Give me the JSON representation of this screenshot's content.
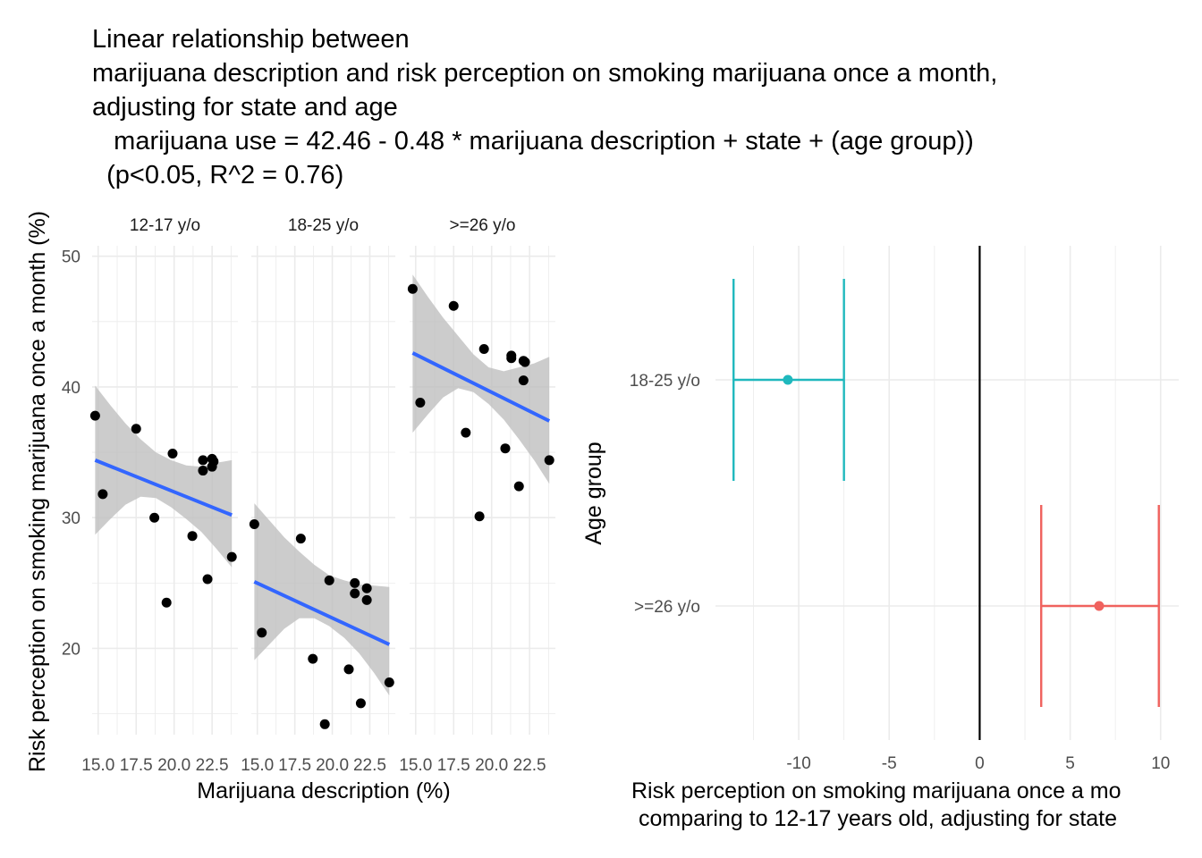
{
  "title_lines": [
    "Linear relationship between",
    "marijuana description and risk perception on smoking marijuana once a month,",
    "adjusting for state and age",
    "   marijuana use = 42.46 - 0.48 * marijuana description + state + (age group))",
    "  (p<0.05, R^2 = 0.76)"
  ],
  "colors": {
    "grid": "#ebebeb",
    "points": "#000000",
    "fit_line": "#3366ff",
    "ribbon": "#bfbfbf",
    "group_18_25": "#1fb8bd",
    "group_26_plus": "#f0625e",
    "ref_line": "#000000"
  },
  "chart_data": [
    {
      "type": "scatter",
      "facets": [
        {
          "label": "12-17 y/o",
          "points": [
            [
              14.8,
              37.8
            ],
            [
              15.3,
              31.8
            ],
            [
              17.5,
              36.8
            ],
            [
              18.7,
              30.0
            ],
            [
              19.5,
              23.5
            ],
            [
              19.9,
              34.9
            ],
            [
              21.2,
              28.6
            ],
            [
              21.9,
              34.4
            ],
            [
              21.9,
              33.6
            ],
            [
              22.2,
              25.3
            ],
            [
              22.5,
              34.5
            ],
            [
              22.5,
              33.9
            ],
            [
              22.6,
              34.3
            ],
            [
              23.8,
              27.0
            ]
          ],
          "fit": {
            "x": [
              14.8,
              23.8
            ],
            "y": [
              34.4,
              30.2
            ]
          },
          "ribbon": {
            "x": [
              14.8,
              15.8,
              16.8,
              17.8,
              18.8,
              19.8,
              20.8,
              21.8,
              22.8,
              23.8
            ],
            "lower": [
              28.7,
              29.9,
              31.0,
              31.6,
              31.5,
              30.8,
              29.9,
              28.9,
              27.6,
              26.2
            ],
            "upper": [
              40.1,
              38.6,
              37.2,
              36.0,
              35.0,
              34.4,
              34.0,
              33.9,
              34.2,
              34.4
            ]
          }
        },
        {
          "label": "18-25 y/o",
          "points": [
            [
              14.8,
              29.5
            ],
            [
              15.3,
              21.2
            ],
            [
              17.9,
              28.4
            ],
            [
              18.7,
              19.2
            ],
            [
              19.5,
              14.2
            ],
            [
              19.8,
              25.2
            ],
            [
              21.1,
              18.4
            ],
            [
              21.5,
              24.2
            ],
            [
              21.5,
              25.0
            ],
            [
              21.9,
              15.8
            ],
            [
              22.3,
              24.6
            ],
            [
              22.3,
              23.7
            ],
            [
              23.8,
              17.4
            ]
          ],
          "fit": {
            "x": [
              14.8,
              23.8
            ],
            "y": [
              25.1,
              20.3
            ]
          },
          "ribbon": {
            "x": [
              14.8,
              15.8,
              16.8,
              17.8,
              18.8,
              19.8,
              20.8,
              21.8,
              22.8,
              23.8
            ],
            "lower": [
              19.1,
              20.3,
              21.5,
              22.3,
              22.3,
              21.7,
              20.8,
              19.6,
              18.1,
              16.4
            ],
            "upper": [
              31.1,
              29.8,
              28.5,
              27.4,
              26.4,
              25.6,
              25.2,
              24.9,
              24.8,
              24.7
            ]
          }
        },
        {
          "label": ">=26 y/o",
          "points": [
            [
              14.8,
              47.5
            ],
            [
              15.3,
              38.8
            ],
            [
              17.5,
              46.2
            ],
            [
              18.3,
              36.5
            ],
            [
              19.2,
              30.1
            ],
            [
              19.5,
              42.9
            ],
            [
              20.9,
              35.3
            ],
            [
              21.3,
              42.4
            ],
            [
              21.3,
              42.2
            ],
            [
              21.8,
              32.4
            ],
            [
              22.2,
              41.9
            ],
            [
              22.1,
              40.5
            ],
            [
              22.1,
              42.0
            ],
            [
              23.8,
              34.4
            ]
          ],
          "fit": {
            "x": [
              14.8,
              23.8
            ],
            "y": [
              42.6,
              37.4
            ]
          },
          "ribbon": {
            "x": [
              14.8,
              15.8,
              16.8,
              17.8,
              18.8,
              19.8,
              20.8,
              21.8,
              22.8,
              23.8
            ],
            "lower": [
              36.5,
              37.9,
              39.2,
              39.9,
              39.6,
              38.7,
              37.5,
              36.0,
              34.4,
              32.6
            ],
            "upper": [
              48.6,
              46.9,
              45.3,
              43.9,
              42.5,
              41.5,
              41.2,
              41.5,
              41.8,
              42.3
            ]
          }
        }
      ],
      "xlabel": "Marijuana description (%)",
      "ylabel": "Risk perception on smoking marijuana once a month (%)",
      "xlim": [
        14.6,
        24.2
      ],
      "ylim": [
        13.4,
        50.8
      ],
      "xticks": [
        15.0,
        17.5,
        20.0,
        22.5
      ],
      "xtick_labels": [
        "15.0",
        "17.5",
        "20.0",
        "22.5"
      ],
      "yticks": [
        20,
        30,
        40,
        50
      ],
      "ytick_labels": [
        "20",
        "30",
        "40",
        "50"
      ],
      "grid": true
    },
    {
      "type": "errorbar",
      "categories": [
        "18-25 y/o",
        ">=26 y/o"
      ],
      "estimates": [
        -10.6,
        6.6
      ],
      "lower": [
        -13.6,
        3.4
      ],
      "upper": [
        -7.5,
        9.9
      ],
      "ylabel": "Age group",
      "xlabel_lines": [
        "Risk perception on smoking marijuana once a mo",
        "comparing to 12-17 years old, adjusting for state"
      ],
      "xlim": [
        -14.6,
        11.0
      ],
      "xticks": [
        -10,
        -5,
        0,
        5,
        10
      ],
      "xtick_labels": [
        "-10",
        "-5",
        "0",
        "5",
        "10"
      ],
      "reference_x": 0,
      "grid": true
    }
  ]
}
